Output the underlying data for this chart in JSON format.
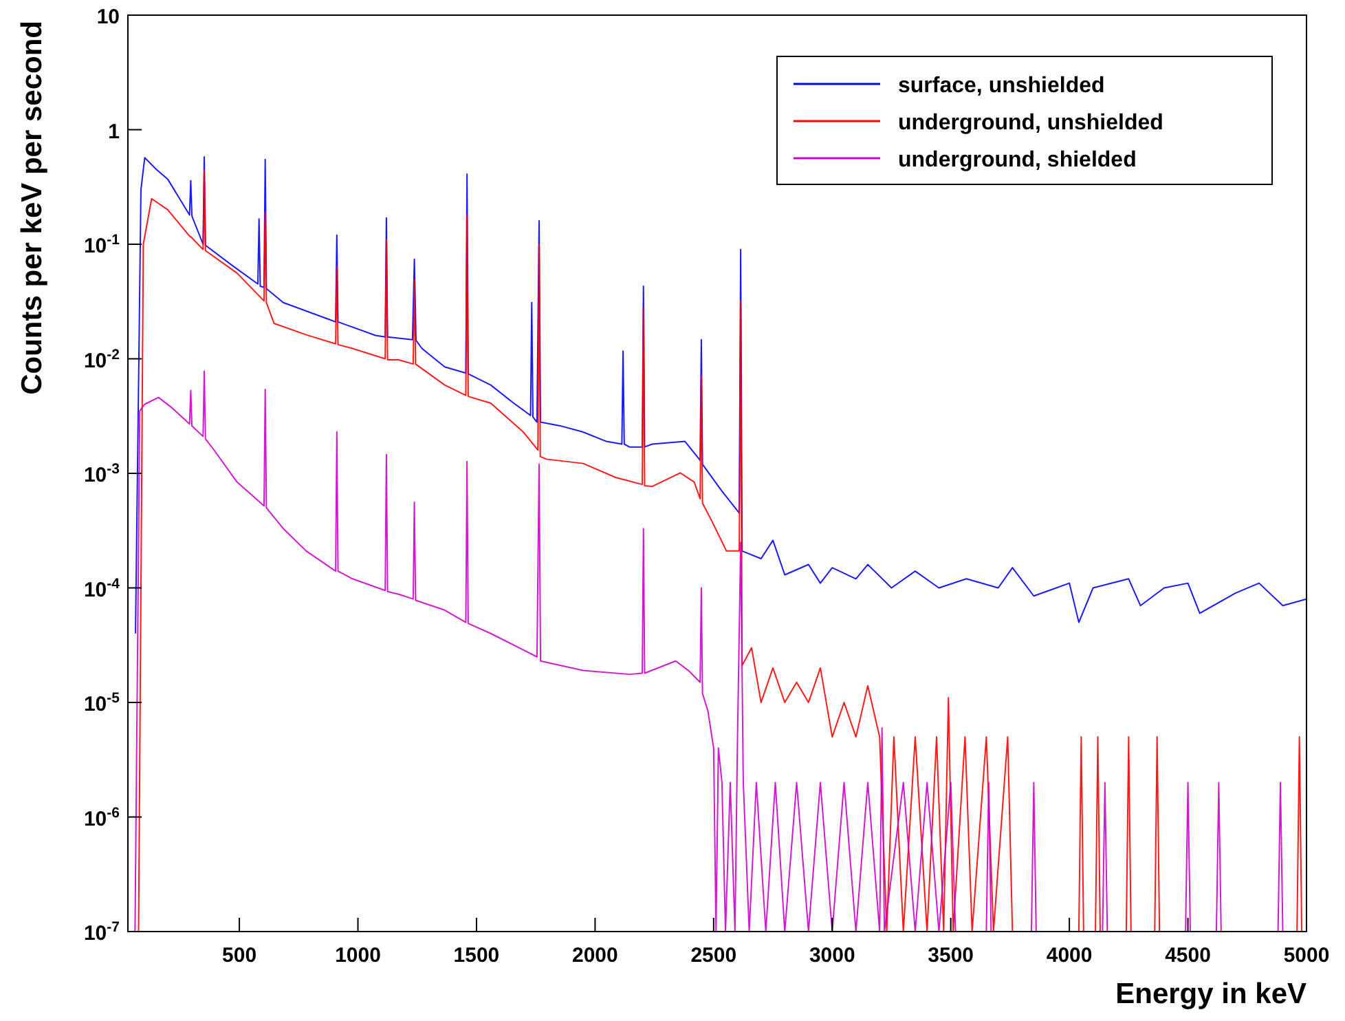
{
  "chart_data": {
    "type": "line",
    "xlabel": "Energy in keV",
    "ylabel": "Counts per keV per second",
    "log": "y",
    "grid": false,
    "legend": "top right",
    "marker": "none",
    "line_style": "solid",
    "xlim": [
      30,
      5000
    ],
    "xticks": [
      500,
      1000,
      1500,
      2000,
      2500,
      3000,
      3500,
      4000,
      4500,
      5000
    ],
    "ylim": [
      1e-07,
      10
    ],
    "yticks": [
      {
        "value": 1e-07,
        "label": "10$^{-7}$"
      },
      {
        "value": 1e-06,
        "label": "10$^{-6}$"
      },
      {
        "value": 1e-05,
        "label": "10$^{-5}$"
      },
      {
        "value": 0.0001,
        "label": "10$^{-4}$"
      },
      {
        "value": 0.001,
        "label": "10$^{-3}$"
      },
      {
        "value": 0.01,
        "label": "10$^{-2}$"
      },
      {
        "value": 0.1,
        "label": "10$^{-1}$"
      },
      1,
      10
    ],
    "series": [
      {
        "name": "surface, unshielded",
        "color": "#0000ff",
        "x": [
          62,
          85,
          101,
          150,
          198,
          290,
          295,
          300,
          347,
          352,
          357,
          471,
          578,
          583,
          588,
          604,
          609,
          614,
          685,
          880,
          906,
          911,
          916,
          1074,
          1115,
          1120,
          1125,
          1230,
          1238,
          1245,
          1270,
          1366,
          1455,
          1460,
          1465,
          1560,
          1657,
          1728,
          1733,
          1738,
          1755,
          1764,
          1770,
          1853,
          1948,
          2048,
          2113,
          2118,
          2123,
          2145,
          2199,
          2204,
          2209,
          2241,
          2379,
          2437,
          2443,
          2448,
          2453,
          2535,
          2608,
          2614,
          2620,
          2700,
          2750,
          2800,
          2900,
          2950,
          3000,
          3100,
          3150,
          3250,
          3350,
          3450,
          3566,
          3700,
          3760,
          3850,
          4000,
          4040,
          4100,
          4250,
          4300,
          4400,
          4500,
          4550,
          4700,
          4800,
          4900,
          5000
        ],
        "values": [
          4e-05,
          0.3,
          0.57,
          0.45,
          0.37,
          0.18,
          0.36,
          0.176,
          0.1,
          0.58,
          0.098,
          0.065,
          0.045,
          0.166,
          0.043,
          0.042,
          0.55,
          0.041,
          0.031,
          0.022,
          0.021,
          0.12,
          0.021,
          0.016,
          0.0155,
          0.17,
          0.0155,
          0.0147,
          0.074,
          0.0145,
          0.0123,
          0.0085,
          0.0075,
          0.41,
          0.0074,
          0.0059,
          0.0041,
          0.0032,
          0.031,
          0.0031,
          0.0028,
          0.16,
          0.0028,
          0.0026,
          0.0023,
          0.0019,
          0.0018,
          0.0117,
          0.0018,
          0.0017,
          0.0017,
          0.043,
          0.0017,
          0.0018,
          0.0019,
          0.00135,
          0.0013,
          0.0147,
          0.0012,
          0.0007,
          0.00045,
          0.09,
          0.00021,
          0.00018,
          0.00026,
          0.00013,
          0.00016,
          0.00011,
          0.00015,
          0.00012,
          0.00016,
          0.0001,
          0.00014,
          0.0001,
          0.00012,
          0.0001,
          0.00015,
          8.5e-05,
          0.00011,
          5e-05,
          0.0001,
          0.00012,
          7e-05,
          0.0001,
          0.00011,
          6e-05,
          9e-05,
          0.00011,
          7e-05,
          8e-05
        ]
      },
      {
        "name": "underground, unshielded",
        "color": "#ff0000",
        "x": [
          75,
          95,
          130,
          198,
          290,
          296,
          347,
          352,
          357,
          490,
          604,
          609,
          614,
          646,
          782,
          906,
          911,
          916,
          977,
          1115,
          1120,
          1125,
          1172,
          1233,
          1238,
          1243,
          1366,
          1455,
          1460,
          1465,
          1560,
          1697,
          1759,
          1764,
          1769,
          1795,
          1950,
          2087,
          2199,
          2204,
          2209,
          2242,
          2359,
          2418,
          2443,
          2448,
          2453,
          2496,
          2554,
          2608,
          2614,
          2620,
          2660,
          2700,
          2750,
          2800,
          2850,
          2900,
          2950,
          3000,
          3050,
          3100,
          3150,
          3200,
          3230,
          3260,
          3300,
          3350,
          3400,
          3440,
          3470,
          3490,
          3510,
          3560,
          3590,
          3650,
          3680,
          3740,
          3760,
          4040,
          4050,
          4060,
          4110,
          4120,
          4130,
          4240,
          4250,
          4260,
          4360,
          4370,
          4380,
          4960,
          4970,
          4980
        ],
        "values": [
          1e-07,
          0.1,
          0.25,
          0.2,
          0.118,
          0.116,
          0.09,
          0.44,
          0.088,
          0.056,
          0.032,
          0.19,
          0.031,
          0.0204,
          0.0162,
          0.0135,
          0.064,
          0.0133,
          0.0123,
          0.01,
          0.11,
          0.0098,
          0.0098,
          0.009,
          0.049,
          0.009,
          0.0059,
          0.0048,
          0.18,
          0.0047,
          0.0041,
          0.0023,
          0.0016,
          0.1,
          0.0014,
          0.00133,
          0.00122,
          0.00092,
          0.0008,
          0.028,
          0.00078,
          0.00077,
          0.00101,
          0.00084,
          0.0006,
          0.0071,
          0.00055,
          0.00037,
          0.00021,
          0.00021,
          0.032,
          2.1e-05,
          3e-05,
          1e-05,
          2e-05,
          1e-05,
          1.5e-05,
          1e-05,
          2e-05,
          5e-06,
          1e-05,
          5e-06,
          1.4e-05,
          5e-06,
          1e-07,
          5e-06,
          1e-07,
          5e-06,
          1e-07,
          5e-06,
          1e-07,
          1.1e-05,
          1e-07,
          5e-06,
          1e-07,
          5e-06,
          1e-07,
          5e-06,
          1e-07,
          1e-07,
          5e-06,
          1e-07,
          1e-07,
          5e-06,
          1e-07,
          1e-07,
          5e-06,
          1e-07,
          1e-07,
          5e-06,
          1e-07,
          1e-07,
          5e-06,
          1e-07
        ]
      },
      {
        "name": "underground, shielded",
        "color": "#cc00cc",
        "x": [
          60,
          80,
          100,
          159,
          218,
          290,
          295,
          300,
          347,
          352,
          357,
          393,
          490,
          604,
          609,
          614,
          685,
          782,
          906,
          911,
          916,
          977,
          1115,
          1120,
          1125,
          1172,
          1233,
          1238,
          1243,
          1366,
          1455,
          1460,
          1465,
          1560,
          1755,
          1764,
          1770,
          1950,
          2145,
          2199,
          2204,
          2209,
          2340,
          2394,
          2443,
          2448,
          2453,
          2476,
          2500,
          2510,
          2520,
          2535,
          2550,
          2570,
          2590,
          2600,
          2614,
          2625,
          2650,
          2680,
          2720,
          2760,
          2800,
          2850,
          2900,
          2950,
          3000,
          3050,
          3100,
          3150,
          3200,
          3210,
          3220,
          3300,
          3350,
          3400,
          3450,
          3500,
          3520,
          3650,
          3660,
          3670,
          3840,
          3850,
          3860,
          4140,
          4150,
          4160,
          4490,
          4500,
          4510,
          4620,
          4630,
          4640,
          4880,
          4890,
          4900
        ],
        "values": [
          1e-07,
          0.0035,
          0.004,
          0.0046,
          0.0037,
          0.0027,
          0.0053,
          0.0026,
          0.0021,
          0.0078,
          0.002,
          0.0016,
          0.00084,
          0.00052,
          0.0054,
          0.0005,
          0.00033,
          0.00021,
          0.00014,
          0.0023,
          0.00014,
          0.00012,
          9.5e-05,
          0.00146,
          9.3e-05,
          8.8e-05,
          8e-05,
          0.00056,
          7.8e-05,
          6.4e-05,
          5e-05,
          0.00127,
          4.9e-05,
          4e-05,
          2.5e-05,
          0.0012,
          2.3e-05,
          1.9e-05,
          1.76e-05,
          1.8e-05,
          0.00033,
          1.8e-05,
          2.3e-05,
          1.9e-05,
          1.5e-05,
          0.0001,
          1.2e-05,
          8.4e-06,
          4e-06,
          1e-07,
          4e-06,
          2e-06,
          1e-07,
          2e-06,
          1e-07,
          4e-06,
          0.00025,
          2e-06,
          1e-07,
          2e-06,
          1e-07,
          2e-06,
          1e-07,
          2e-06,
          1e-07,
          2e-06,
          1e-07,
          2e-06,
          1e-07,
          2e-06,
          1e-07,
          6e-06,
          1e-07,
          2e-06,
          1e-07,
          2e-06,
          1e-07,
          2e-06,
          1e-07,
          1e-07,
          2e-06,
          1e-07,
          1e-07,
          2e-06,
          1e-07,
          1e-07,
          2e-06,
          1e-07,
          1e-07,
          2e-06,
          1e-07,
          1e-07,
          2e-06,
          1e-07,
          1e-07,
          2e-06,
          1e-07
        ]
      }
    ]
  }
}
